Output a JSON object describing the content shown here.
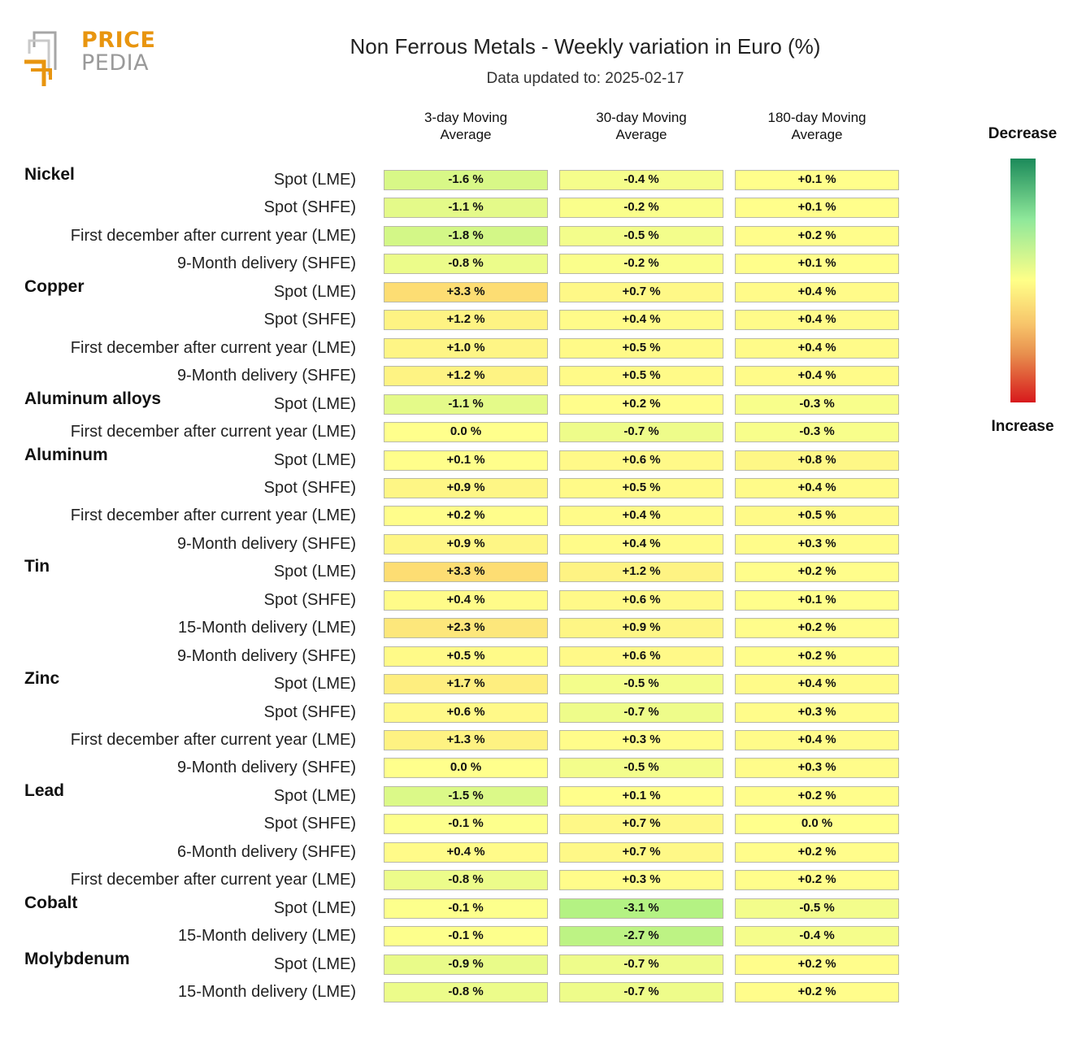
{
  "logo": {
    "line1": "PRICE",
    "line2": "PEDIA"
  },
  "header": {
    "title": "Non Ferrous Metals - Weekly variation in Euro (%)",
    "subtitle": "Data updated to: 2025-02-17"
  },
  "legend": {
    "top": "Decrease",
    "bottom": "Increase"
  },
  "colors": {
    "decrease": "#1b8a5a",
    "neutral": "#ffff88",
    "increase": "#d7191c"
  },
  "chart_data": {
    "type": "table",
    "columns": [
      "3-day Moving Average",
      "30-day Moving Average",
      "180-day Moving Average"
    ],
    "groups": [
      {
        "name": "Nickel",
        "rows": [
          {
            "label": "Spot (LME)",
            "values": [
              -1.6,
              -0.4,
              0.1
            ],
            "text": [
              "-1.6 %",
              "-0.4 %",
              "+0.1 %"
            ]
          },
          {
            "label": "Spot (SHFE)",
            "values": [
              -1.1,
              -0.2,
              0.1
            ],
            "text": [
              "-1.1 %",
              "-0.2 %",
              "+0.1 %"
            ]
          },
          {
            "label": "First december after current year (LME)",
            "values": [
              -1.8,
              -0.5,
              0.2
            ],
            "text": [
              "-1.8 %",
              "-0.5 %",
              "+0.2 %"
            ]
          },
          {
            "label": "9-Month delivery (SHFE)",
            "values": [
              -0.8,
              -0.2,
              0.1
            ],
            "text": [
              "-0.8 %",
              "-0.2 %",
              "+0.1 %"
            ]
          }
        ]
      },
      {
        "name": "Copper",
        "rows": [
          {
            "label": "Spot (LME)",
            "values": [
              3.3,
              0.7,
              0.4
            ],
            "text": [
              "+3.3 %",
              "+0.7 %",
              "+0.4 %"
            ]
          },
          {
            "label": "Spot (SHFE)",
            "values": [
              1.2,
              0.4,
              0.4
            ],
            "text": [
              "+1.2 %",
              "+0.4 %",
              "+0.4 %"
            ]
          },
          {
            "label": "First december after current year (LME)",
            "values": [
              1.0,
              0.5,
              0.4
            ],
            "text": [
              "+1.0 %",
              "+0.5 %",
              "+0.4 %"
            ]
          },
          {
            "label": "9-Month delivery (SHFE)",
            "values": [
              1.2,
              0.5,
              0.4
            ],
            "text": [
              "+1.2 %",
              "+0.5 %",
              "+0.4 %"
            ]
          }
        ]
      },
      {
        "name": "Aluminum alloys",
        "rows": [
          {
            "label": "Spot (LME)",
            "values": [
              -1.1,
              0.2,
              -0.3
            ],
            "text": [
              "-1.1 %",
              "+0.2 %",
              "-0.3 %"
            ]
          },
          {
            "label": "First december after current year (LME)",
            "values": [
              0.0,
              -0.7,
              -0.3
            ],
            "text": [
              "0.0 %",
              "-0.7 %",
              "-0.3 %"
            ]
          }
        ]
      },
      {
        "name": "Aluminum",
        "rows": [
          {
            "label": "Spot (LME)",
            "values": [
              0.1,
              0.6,
              0.8
            ],
            "text": [
              "+0.1 %",
              "+0.6 %",
              "+0.8 %"
            ]
          },
          {
            "label": "Spot (SHFE)",
            "values": [
              0.9,
              0.5,
              0.4
            ],
            "text": [
              "+0.9 %",
              "+0.5 %",
              "+0.4 %"
            ]
          },
          {
            "label": "First december after current year (LME)",
            "values": [
              0.2,
              0.4,
              0.5
            ],
            "text": [
              "+0.2 %",
              "+0.4 %",
              "+0.5 %"
            ]
          },
          {
            "label": "9-Month delivery (SHFE)",
            "values": [
              0.9,
              0.4,
              0.3
            ],
            "text": [
              "+0.9 %",
              "+0.4 %",
              "+0.3 %"
            ]
          }
        ]
      },
      {
        "name": "Tin",
        "rows": [
          {
            "label": "Spot (LME)",
            "values": [
              3.3,
              1.2,
              0.2
            ],
            "text": [
              "+3.3 %",
              "+1.2 %",
              "+0.2 %"
            ]
          },
          {
            "label": "Spot (SHFE)",
            "values": [
              0.4,
              0.6,
              0.1
            ],
            "text": [
              "+0.4 %",
              "+0.6 %",
              "+0.1 %"
            ]
          },
          {
            "label": "15-Month delivery (LME)",
            "values": [
              2.3,
              0.9,
              0.2
            ],
            "text": [
              "+2.3 %",
              "+0.9 %",
              "+0.2 %"
            ]
          },
          {
            "label": "9-Month delivery (SHFE)",
            "values": [
              0.5,
              0.6,
              0.2
            ],
            "text": [
              "+0.5 %",
              "+0.6 %",
              "+0.2 %"
            ]
          }
        ]
      },
      {
        "name": "Zinc",
        "rows": [
          {
            "label": "Spot (LME)",
            "values": [
              1.7,
              -0.5,
              0.4
            ],
            "text": [
              "+1.7 %",
              "-0.5 %",
              "+0.4 %"
            ]
          },
          {
            "label": "Spot (SHFE)",
            "values": [
              0.6,
              -0.7,
              0.3
            ],
            "text": [
              "+0.6 %",
              "-0.7 %",
              "+0.3 %"
            ]
          },
          {
            "label": "First december after current year (LME)",
            "values": [
              1.3,
              0.3,
              0.4
            ],
            "text": [
              "+1.3 %",
              "+0.3 %",
              "+0.4 %"
            ]
          },
          {
            "label": "9-Month delivery (SHFE)",
            "values": [
              0.0,
              -0.5,
              0.3
            ],
            "text": [
              "0.0 %",
              "-0.5 %",
              "+0.3 %"
            ]
          }
        ]
      },
      {
        "name": "Lead",
        "rows": [
          {
            "label": "Spot (LME)",
            "values": [
              -1.5,
              0.1,
              0.2
            ],
            "text": [
              "-1.5 %",
              "+0.1 %",
              "+0.2 %"
            ]
          },
          {
            "label": "Spot (SHFE)",
            "values": [
              -0.1,
              0.7,
              0.0
            ],
            "text": [
              "-0.1 %",
              "+0.7 %",
              "0.0 %"
            ]
          },
          {
            "label": "6-Month delivery (SHFE)",
            "values": [
              0.4,
              0.7,
              0.2
            ],
            "text": [
              "+0.4 %",
              "+0.7 %",
              "+0.2 %"
            ]
          },
          {
            "label": "First december after current year (LME)",
            "values": [
              -0.8,
              0.3,
              0.2
            ],
            "text": [
              "-0.8 %",
              "+0.3 %",
              "+0.2 %"
            ]
          }
        ]
      },
      {
        "name": "Cobalt",
        "rows": [
          {
            "label": "Spot (LME)",
            "values": [
              -0.1,
              -3.1,
              -0.5
            ],
            "text": [
              "-0.1 %",
              "-3.1 %",
              "-0.5 %"
            ]
          },
          {
            "label": "15-Month delivery (LME)",
            "values": [
              -0.1,
              -2.7,
              -0.4
            ],
            "text": [
              "-0.1 %",
              "-2.7 %",
              "-0.4 %"
            ]
          }
        ]
      },
      {
        "name": "Molybdenum",
        "rows": [
          {
            "label": "Spot (LME)",
            "values": [
              -0.9,
              -0.7,
              0.2
            ],
            "text": [
              "-0.9 %",
              "-0.7 %",
              "+0.2 %"
            ]
          },
          {
            "label": "15-Month delivery (LME)",
            "values": [
              -0.8,
              -0.7,
              0.2
            ],
            "text": [
              "-0.8 %",
              "-0.7 %",
              "+0.2 %"
            ]
          }
        ]
      }
    ]
  }
}
